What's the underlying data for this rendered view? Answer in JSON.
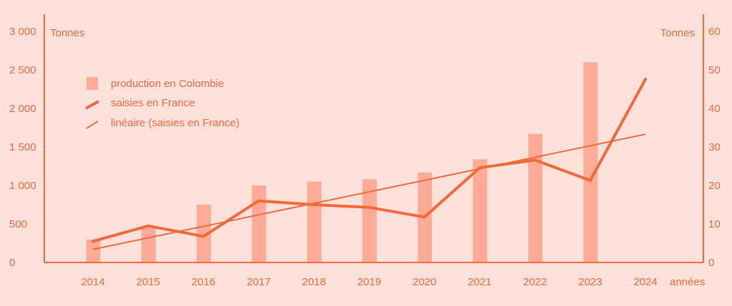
{
  "chart_data": {
    "type": "bar+line",
    "categories": [
      "2014",
      "2015",
      "2016",
      "2017",
      "2018",
      "2019",
      "2020",
      "2021",
      "2022",
      "2023",
      "2024"
    ],
    "series": [
      {
        "name": "production en Colombie",
        "type": "bar",
        "axis": "left",
        "values": [
          300,
          450,
          750,
          1000,
          1050,
          1080,
          1170,
          1340,
          1670,
          2600,
          null
        ]
      },
      {
        "name": "saisies en France",
        "type": "line",
        "axis": "right",
        "values": [
          5.5,
          9.5,
          6.8,
          16,
          15,
          14.3,
          11.8,
          24.6,
          26.6,
          21.3,
          47.6
        ]
      },
      {
        "name": "linéaire (saisies en France)",
        "type": "trendline",
        "axis": "right",
        "values": [
          3.4,
          6.3,
          9.3,
          12.3,
          15.3,
          18.3,
          21.3,
          24.3,
          27.3,
          30.3,
          33.3
        ]
      }
    ],
    "left_axis": {
      "label": "Tonnes",
      "ylim": [
        0,
        3000
      ],
      "ticks": [
        0,
        500,
        1000,
        1500,
        2000,
        2500,
        3000
      ],
      "tick_labels": [
        "0",
        "500",
        "1 000",
        "1 500",
        "2 000",
        "2 500",
        "3 000"
      ]
    },
    "right_axis": {
      "label": "Tonnes",
      "ylim": [
        0,
        60
      ],
      "ticks": [
        0,
        10,
        20,
        30,
        40,
        50,
        60
      ],
      "tick_labels": [
        "0",
        "10",
        "20",
        "30",
        "40",
        "50",
        "60"
      ]
    },
    "xlabel": "années",
    "legend": "top-left",
    "grid": false,
    "colors": {
      "background": "#ffe1dc",
      "bars": "#ffab98",
      "line": "#f26a3a",
      "axis": "#f26a3a",
      "text": "#f26a3a"
    }
  }
}
